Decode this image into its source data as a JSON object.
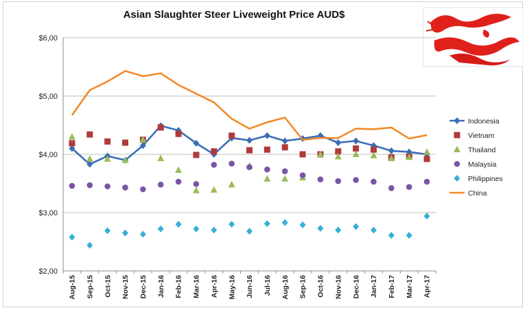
{
  "chart_data": {
    "type": "line",
    "title": "Asian Slaughter Steer Liveweight Price AUD$",
    "xlabel": "",
    "ylabel": "",
    "ylim": [
      2,
      6
    ],
    "yticks": [
      2,
      3,
      4,
      5,
      6
    ],
    "ytick_labels": [
      "$2,00",
      "$3,00",
      "$4,00",
      "$5,00",
      "$6,00"
    ],
    "grid": "horizontal",
    "legend_position": "right",
    "categories": [
      "Aug-15",
      "Sep-15",
      "Oct-15",
      "Nov-15",
      "Dec-15",
      "Jan-16",
      "Feb-16",
      "Mar-16",
      "Apr-16",
      "May-16",
      "Jun-16",
      "Jul-16",
      "Aug-16",
      "Sep-16",
      "Oct-16",
      "Nov-16",
      "Dec-16",
      "Jan-17",
      "Feb-17",
      "Mar-17",
      "Apr-17"
    ],
    "series": [
      {
        "name": "Indonesia",
        "style": "line-diamond",
        "color": "#3b6db5",
        "values": [
          4.1,
          3.83,
          3.97,
          3.9,
          4.15,
          4.49,
          4.41,
          4.19,
          4.0,
          4.28,
          4.24,
          4.32,
          4.23,
          4.27,
          4.32,
          4.2,
          4.23,
          4.15,
          4.06,
          4.04,
          4.0
        ]
      },
      {
        "name": "Vietnam",
        "style": "square",
        "color": "#b03a3a",
        "values": [
          4.19,
          4.34,
          4.22,
          4.2,
          4.25,
          4.46,
          4.35,
          3.99,
          4.05,
          4.32,
          4.07,
          4.08,
          4.12,
          4.0,
          4.0,
          4.05,
          4.1,
          4.08,
          3.95,
          3.96,
          3.92
        ]
      },
      {
        "name": "Thailand",
        "style": "triangle",
        "color": "#9bbb59",
        "values": [
          4.3,
          3.92,
          3.92,
          3.9,
          4.25,
          3.93,
          3.73,
          3.38,
          3.39,
          3.48,
          3.8,
          3.58,
          3.58,
          3.6,
          4.0,
          3.96,
          4.0,
          3.98,
          3.93,
          3.95,
          4.04
        ]
      },
      {
        "name": "Malaysia",
        "style": "circle",
        "color": "#7a55a5",
        "values": [
          3.46,
          3.47,
          3.45,
          3.43,
          3.4,
          3.48,
          3.53,
          3.49,
          3.82,
          3.84,
          3.78,
          3.74,
          3.71,
          3.64,
          3.57,
          3.54,
          3.56,
          3.53,
          3.42,
          3.44,
          3.53
        ]
      },
      {
        "name": "Philippines",
        "style": "diamond",
        "color": "#35b0d6",
        "values": [
          2.58,
          2.44,
          2.69,
          2.65,
          2.63,
          2.72,
          2.8,
          2.72,
          2.7,
          2.8,
          2.68,
          2.81,
          2.83,
          2.79,
          2.73,
          2.7,
          2.76,
          2.7,
          2.61,
          2.61,
          2.94
        ]
      },
      {
        "name": "China",
        "style": "line",
        "color": "#f28a2a",
        "values": [
          4.67,
          5.1,
          5.25,
          5.43,
          5.34,
          5.39,
          5.19,
          5.04,
          4.89,
          4.61,
          4.44,
          4.55,
          4.63,
          4.25,
          4.28,
          4.28,
          4.44,
          4.43,
          4.46,
          4.27,
          4.33
        ]
      }
    ]
  }
}
